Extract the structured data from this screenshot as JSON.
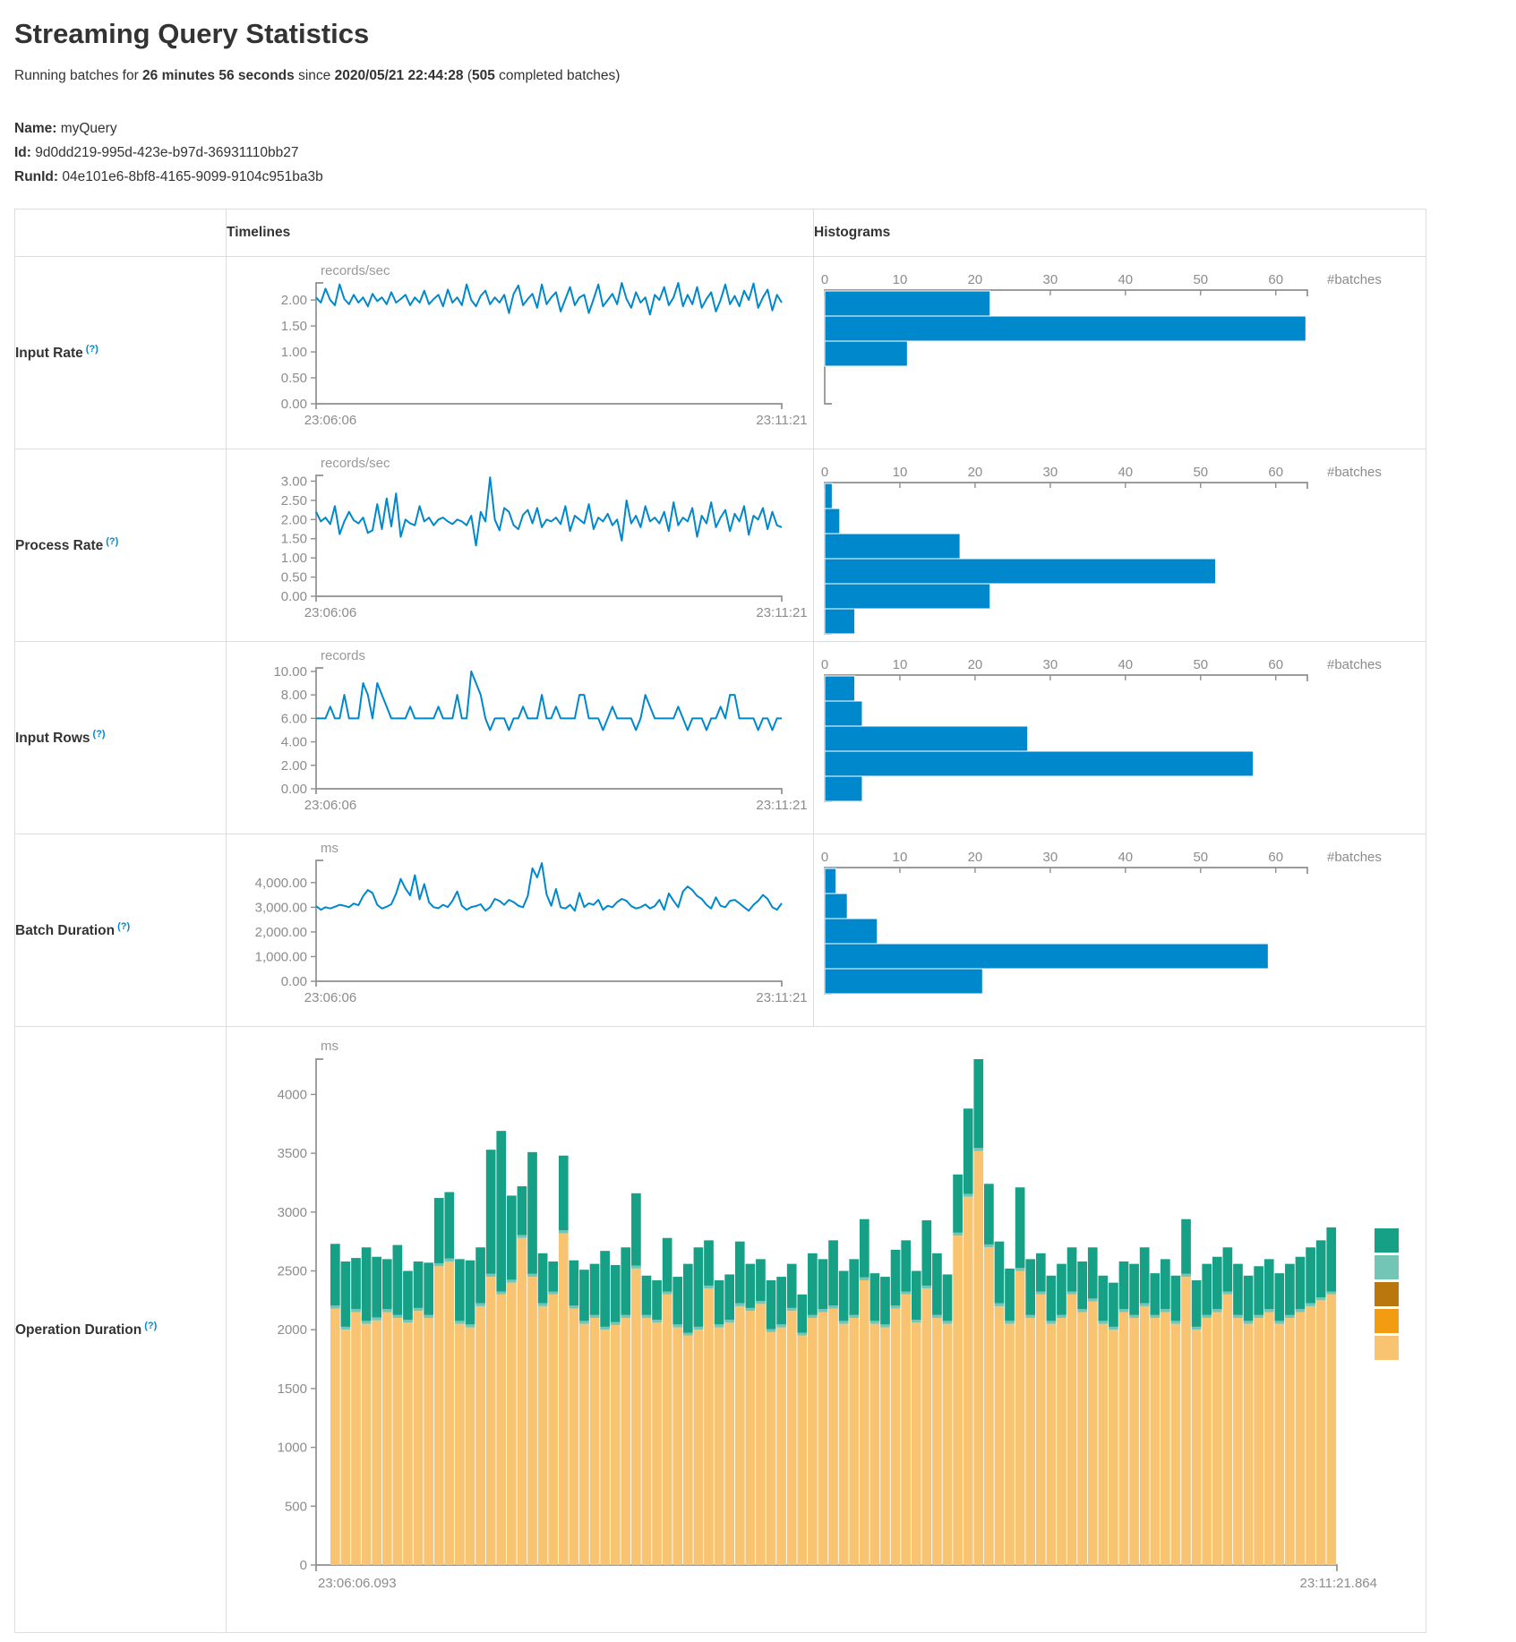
{
  "page": {
    "title": "Streaming Query Statistics",
    "subtitle_prefix": "Running batches for ",
    "duration": "26 minutes 56 seconds",
    "since_word": " since ",
    "start_time": "2020/05/21 22:44:28",
    "paren_open": " (",
    "completed_batches": "505",
    "batches_suffix": " completed batches)",
    "name_label": "Name:",
    "name_value": "myQuery",
    "id_label": "Id:",
    "id_value": "9d0dd219-995d-423e-b97d-36931110bb27",
    "runid_label": "RunId:",
    "runid_value": "04e101e6-8bf8-4165-9099-9104c951ba3b"
  },
  "table": {
    "col_timelines": "Timelines",
    "col_histograms": "Histograms",
    "help_marker": "(?)",
    "rows": [
      {
        "label": "Input Rate"
      },
      {
        "label": "Process Rate"
      },
      {
        "label": "Input Rows"
      },
      {
        "label": "Batch Duration"
      },
      {
        "label": "Operation Duration"
      }
    ]
  },
  "colors": {
    "line": "#0088cc",
    "bar": "#0088cc",
    "axis": "#8f8f8f",
    "tick_text": "#8c8c8c",
    "unit_text": "#999999",
    "table_border": "#dddddd",
    "help": "#0088cc",
    "op_stack_bottom": "#F8C471",
    "op_stack_mid": "#73C6B6",
    "op_stack_top": "#16A085",
    "op_legend": [
      "#16A085",
      "#73C6B6",
      "#B9770E",
      "#F39C12",
      "#F8C471"
    ]
  },
  "chart_data": [
    {
      "id": "input-rate-timeline",
      "mount": "tl-0",
      "type": "line",
      "title": "Input Rate timeline",
      "ylabel": "records/sec",
      "x_start": "23:06:06",
      "x_end": "23:11:21",
      "ymax": 2.33,
      "grid": false,
      "yticks": [
        {
          "v": 2,
          "label": "2.00"
        },
        {
          "v": 1.5,
          "label": "1.50"
        },
        {
          "v": 1,
          "label": "1.00"
        },
        {
          "v": 0.5,
          "label": "0.50"
        },
        {
          "v": 0,
          "label": "0.00"
        }
      ],
      "values": [
        2.05,
        1.95,
        2.22,
        2.0,
        1.9,
        2.3,
        2.02,
        1.92,
        2.1,
        1.95,
        2.05,
        1.88,
        2.12,
        1.98,
        2.05,
        1.92,
        2.15,
        1.95,
        2.02,
        2.1,
        1.9,
        2.05,
        1.95,
        2.18,
        1.92,
        2.02,
        2.1,
        1.88,
        2.2,
        1.95,
        2.05,
        1.9,
        2.3,
        2.0,
        1.88,
        2.08,
        2.18,
        1.92,
        2.05,
        1.95,
        2.1,
        1.75,
        2.12,
        2.28,
        1.9,
        2.02,
        2.12,
        1.85,
        2.3,
        1.92,
        2.05,
        2.15,
        1.78,
        2.02,
        2.25,
        1.9,
        2.05,
        2.1,
        1.75,
        2.02,
        2.3,
        1.88,
        2.0,
        2.12,
        1.92,
        2.33,
        2.02,
        1.85,
        2.15,
        1.95,
        2.05,
        1.72,
        2.1,
        2.0,
        2.25,
        1.9,
        2.05,
        2.33,
        1.88,
        2.1,
        1.92,
        2.25,
        1.85,
        2.02,
        2.15,
        1.78,
        2.0,
        2.3,
        1.92,
        2.08,
        1.88,
        2.18,
        2.0,
        2.32,
        1.85,
        2.05,
        2.2,
        1.8,
        2.1,
        1.95
      ]
    },
    {
      "id": "input-rate-histogram",
      "mount": "h-0",
      "type": "histogram",
      "title": "Input Rate histogram",
      "xlabel": "#batches",
      "xmax": 64.2,
      "grid": false,
      "xticks": [
        {
          "v": 0,
          "label": "0"
        },
        {
          "v": 10,
          "label": "10"
        },
        {
          "v": 20,
          "label": "20"
        },
        {
          "v": 30,
          "label": "30"
        },
        {
          "v": 40,
          "label": "40"
        },
        {
          "v": 50,
          "label": "50"
        },
        {
          "v": 60,
          "label": "60"
        }
      ],
      "values": [
        22,
        64,
        11
      ]
    },
    {
      "id": "process-rate-timeline",
      "mount": "tl-1",
      "type": "line",
      "title": "Process Rate timeline",
      "ylabel": "records/sec",
      "x_start": "23:06:06",
      "x_end": "23:11:21",
      "ymax": 3.15,
      "grid": false,
      "yticks": [
        {
          "v": 3,
          "label": "3.00"
        },
        {
          "v": 2.5,
          "label": "2.50"
        },
        {
          "v": 2,
          "label": "2.00"
        },
        {
          "v": 1.5,
          "label": "1.50"
        },
        {
          "v": 1,
          "label": "1.00"
        },
        {
          "v": 0.5,
          "label": "0.50"
        },
        {
          "v": 0,
          "label": "0.00"
        }
      ],
      "values": [
        2.2,
        1.95,
        2.05,
        1.88,
        2.35,
        1.62,
        1.95,
        2.2,
        1.98,
        1.9,
        2.05,
        1.65,
        1.72,
        2.4,
        1.75,
        2.55,
        1.82,
        2.68,
        1.55,
        2.0,
        1.9,
        1.85,
        2.35,
        1.95,
        2.05,
        1.85,
        2.0,
        2.05,
        1.95,
        1.88,
        2.0,
        1.95,
        1.85,
        2.1,
        1.32,
        2.2,
        1.95,
        3.1,
        2.0,
        1.72,
        2.3,
        2.2,
        1.85,
        1.75,
        2.12,
        2.25,
        1.9,
        2.3,
        1.8,
        2.0,
        1.95,
        2.05,
        1.88,
        2.35,
        1.7,
        2.1,
        2.0,
        1.9,
        2.4,
        1.75,
        2.05,
        1.95,
        2.15,
        1.85,
        2.0,
        1.45,
        2.5,
        1.9,
        2.1,
        1.8,
        2.35,
        1.95,
        2.05,
        1.9,
        2.2,
        1.7,
        2.45,
        1.85,
        2.05,
        1.95,
        2.3,
        1.55,
        2.1,
        1.9,
        2.45,
        1.8,
        2.05,
        2.25,
        1.7,
        2.15,
        1.95,
        2.35,
        1.6,
        2.1,
        2.0,
        2.3,
        1.75,
        2.2,
        1.85,
        1.8
      ]
    },
    {
      "id": "process-rate-histogram",
      "mount": "h-1",
      "type": "histogram",
      "title": "Process Rate histogram",
      "xlabel": "#batches",
      "xmax": 64.2,
      "grid": false,
      "xticks": [
        {
          "v": 0,
          "label": "0"
        },
        {
          "v": 10,
          "label": "10"
        },
        {
          "v": 20,
          "label": "20"
        },
        {
          "v": 30,
          "label": "30"
        },
        {
          "v": 40,
          "label": "40"
        },
        {
          "v": 50,
          "label": "50"
        },
        {
          "v": 60,
          "label": "60"
        }
      ],
      "values": [
        1,
        2,
        18,
        52,
        22,
        4
      ]
    },
    {
      "id": "input-rows-timeline",
      "mount": "tl-2",
      "type": "line",
      "title": "Input Rows timeline",
      "ylabel": "records",
      "x_start": "23:06:06",
      "x_end": "23:11:21",
      "ymax": 10.3,
      "grid": false,
      "yticks": [
        {
          "v": 10,
          "label": "10.00"
        },
        {
          "v": 8,
          "label": "8.00"
        },
        {
          "v": 6,
          "label": "6.00"
        },
        {
          "v": 4,
          "label": "4.00"
        },
        {
          "v": 2,
          "label": "2.00"
        },
        {
          "v": 0,
          "label": "0.00"
        }
      ],
      "values": [
        6,
        6,
        6,
        7,
        6,
        6,
        8,
        6,
        6,
        6,
        9,
        8,
        6,
        9,
        8,
        7,
        6,
        6,
        6,
        6,
        7,
        6,
        6,
        6,
        6,
        6,
        7,
        6,
        6,
        6,
        8,
        6,
        6,
        10,
        9,
        8,
        6,
        5,
        6,
        6,
        6,
        5,
        6,
        6,
        7,
        6,
        6,
        6,
        8,
        6,
        6,
        7,
        6,
        6,
        6,
        6,
        8,
        8,
        6,
        6,
        6,
        5,
        6,
        7,
        6,
        6,
        6,
        6,
        5,
        6,
        8,
        7,
        6,
        6,
        6,
        6,
        6,
        7,
        6,
        5,
        6,
        6,
        6,
        5,
        6,
        6,
        7,
        6,
        8,
        8,
        6,
        6,
        6,
        6,
        5,
        6,
        6,
        5,
        6,
        6
      ]
    },
    {
      "id": "input-rows-histogram",
      "mount": "h-2",
      "type": "histogram",
      "title": "Input Rows histogram",
      "xlabel": "#batches",
      "xmax": 64.2,
      "grid": false,
      "xticks": [
        {
          "v": 0,
          "label": "0"
        },
        {
          "v": 10,
          "label": "10"
        },
        {
          "v": 20,
          "label": "20"
        },
        {
          "v": 30,
          "label": "30"
        },
        {
          "v": 40,
          "label": "40"
        },
        {
          "v": 50,
          "label": "50"
        },
        {
          "v": 60,
          "label": "60"
        }
      ],
      "values": [
        4,
        5,
        27,
        57,
        5
      ]
    },
    {
      "id": "batch-duration-timeline",
      "mount": "tl-3",
      "type": "line",
      "title": "Batch Duration timeline",
      "ylabel": "ms",
      "x_start": "23:06:06",
      "x_end": "23:11:21",
      "ymax": 4900,
      "grid": false,
      "yticks": [
        {
          "v": 4000,
          "label": "4,000.00"
        },
        {
          "v": 3000,
          "label": "3,000.00"
        },
        {
          "v": 2000,
          "label": "2,000.00"
        },
        {
          "v": 1000,
          "label": "1,000.00"
        },
        {
          "v": 0,
          "label": "0.00"
        }
      ],
      "values": [
        3050,
        2900,
        3000,
        2950,
        3020,
        3100,
        3060,
        3000,
        3150,
        3080,
        3450,
        3700,
        3580,
        3100,
        2950,
        3020,
        3120,
        3550,
        4150,
        3760,
        3480,
        4300,
        3320,
        3940,
        3200,
        3000,
        2960,
        3100,
        3010,
        3260,
        3640,
        3060,
        2900,
        3010,
        3050,
        3120,
        2860,
        3000,
        3340,
        3260,
        3100,
        3300,
        3210,
        3060,
        3000,
        3460,
        4580,
        4210,
        4790,
        3520,
        3060,
        3740,
        3000,
        2950,
        3100,
        2860,
        3580,
        3010,
        3160,
        3100,
        3300,
        2900,
        3060,
        3000,
        3210,
        3340,
        3260,
        3050,
        2950,
        3000,
        3110,
        2950,
        3050,
        3300,
        2900,
        3560,
        3260,
        3000,
        3640,
        3840,
        3700,
        3460,
        3340,
        3100,
        2950,
        3400,
        3060,
        3000,
        3260,
        3300,
        3160,
        3000,
        2860,
        3100,
        3260,
        3500,
        3340,
        3000,
        2900,
        3160
      ]
    },
    {
      "id": "batch-duration-histogram",
      "mount": "h-3",
      "type": "histogram",
      "title": "Batch Duration histogram",
      "xlabel": "#batches",
      "xmax": 64.2,
      "grid": false,
      "xticks": [
        {
          "v": 0,
          "label": "0"
        },
        {
          "v": 10,
          "label": "10"
        },
        {
          "v": 20,
          "label": "20"
        },
        {
          "v": 30,
          "label": "30"
        },
        {
          "v": 40,
          "label": "40"
        },
        {
          "v": 50,
          "label": "50"
        },
        {
          "v": 60,
          "label": "60"
        }
      ],
      "values": [
        1.5,
        3,
        7,
        59,
        21
      ]
    },
    {
      "id": "operation-duration",
      "mount": "op",
      "type": "stacked-bar",
      "title": "Operation Duration",
      "ylabel": "ms",
      "x_start": "23:06:06.093",
      "x_end": "23:11:21.864",
      "ymax": 4300,
      "grid": false,
      "legend_position": "right",
      "yticks": [
        {
          "v": 4000,
          "label": "4000"
        },
        {
          "v": 3500,
          "label": "3500"
        },
        {
          "v": 3000,
          "label": "3000"
        },
        {
          "v": 2500,
          "label": "2500"
        },
        {
          "v": 2000,
          "label": "2000"
        },
        {
          "v": 1500,
          "label": "1500"
        },
        {
          "v": 1000,
          "label": "1000"
        },
        {
          "v": 500,
          "label": "500"
        },
        {
          "v": 0,
          "label": "0"
        }
      ],
      "legend_colors": [
        "#16A085",
        "#73C6B6",
        "#B9770E",
        "#F39C12",
        "#F8C471"
      ],
      "series": [
        {
          "name": "bottom-segment",
          "color": "#F8C471",
          "values": [
            2180,
            2000,
            2150,
            2050,
            2080,
            2150,
            2100,
            2060,
            2160,
            2100,
            2540,
            2580,
            2050,
            2020,
            2200,
            2450,
            2300,
            2400,
            2780,
            2450,
            2200,
            2300,
            2820,
            2180,
            2050,
            2100,
            2000,
            2040,
            2100,
            2520,
            2100,
            2060,
            2300,
            2020,
            1950,
            2000,
            2350,
            2020,
            2060,
            2200,
            2160,
            2220,
            1980,
            2020,
            2160,
            1950,
            2100,
            2150,
            2180,
            2050,
            2100,
            2420,
            2050,
            2020,
            2180,
            2300,
            2060,
            2350,
            2100,
            2050,
            2800,
            3130,
            3520,
            2700,
            2200,
            2050,
            2500,
            2100,
            2300,
            2050,
            2100,
            2300,
            2150,
            2240,
            2050,
            2000,
            2150,
            2100,
            2200,
            2100,
            2150,
            2050,
            2450,
            2000,
            2100,
            2150,
            2300,
            2100,
            2050,
            2100,
            2150,
            2050,
            2100,
            2150,
            2200,
            2250,
            2300
          ]
        },
        {
          "name": "middle-segment",
          "color": "#73C6B6",
          "constant": 25
        },
        {
          "name": "top-segment",
          "color": "#16A085",
          "values": [
            525,
            555,
            435,
            625,
            515,
            425,
            595,
            415,
            395,
            445,
            555,
            565,
            525,
            545,
            475,
            1055,
            1365,
            715,
            415,
            1035,
            425,
            255,
            635,
            385,
            435,
            435,
            645,
            485,
            575,
            615,
            335,
            335,
            455,
            405,
            585,
            675,
            385,
            375,
            385,
            525,
            375,
            355,
            415,
            405,
            375,
            325,
            525,
            425,
            555,
            425,
            475,
            495,
            405,
            405,
            475,
            435,
            415,
            555,
            525,
            395,
            495,
            725,
            755,
            515,
            525,
            445,
            685,
            475,
            325,
            385,
            435,
            375,
            405,
            435,
            385,
            375,
            405,
            435,
            475,
            355,
            425,
            385,
            465,
            395,
            435,
            445,
            375,
            435,
            385,
            415,
            425,
            405,
            435,
            445,
            475,
            485,
            545
          ]
        }
      ]
    }
  ]
}
